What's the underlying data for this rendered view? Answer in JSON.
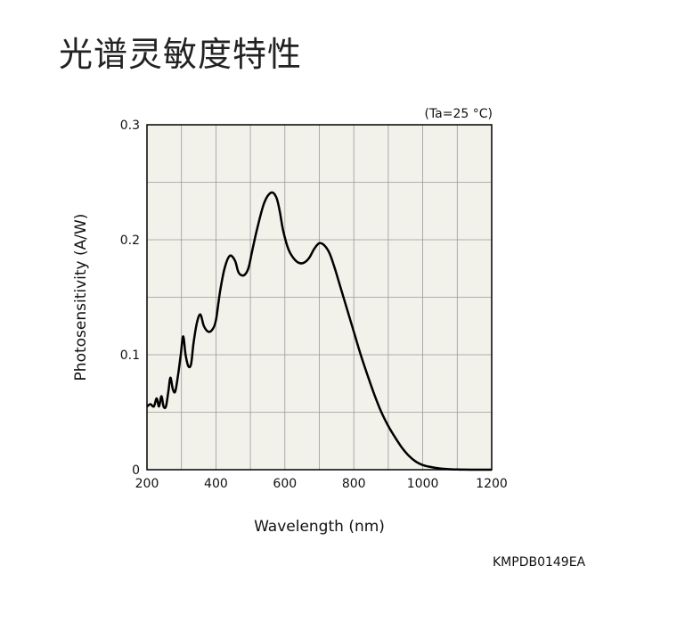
{
  "title": "光谱灵敏度特性",
  "condition_note": "(Ta=25 °C)",
  "doc_code": "KMPDB0149EA",
  "colors": {
    "plot_background": "#f2f1ea",
    "grid": "#9a9a9a",
    "curve": "#000000"
  },
  "chart_data": {
    "type": "line",
    "title": "",
    "xlabel": "Wavelength (nm)",
    "ylabel": "Photosensitivity (A/W)",
    "xlim": [
      200,
      1200
    ],
    "ylim": [
      0,
      0.3
    ],
    "x_ticks": [
      200,
      400,
      600,
      800,
      1000,
      1200
    ],
    "x_tick_labels": [
      "200",
      "400",
      "600",
      "800",
      "1000",
      "1200"
    ],
    "y_ticks": [
      0,
      0.1,
      0.2,
      0.3
    ],
    "y_tick_labels": [
      "0",
      "0.1",
      "0.2",
      "0.3"
    ],
    "grid": true,
    "series": [
      {
        "x": [
          200,
          210,
          220,
          228,
          235,
          242,
          248,
          255,
          262,
          268,
          275,
          282,
          290,
          298,
          305,
          312,
          320,
          328,
          335,
          345,
          355,
          365,
          378,
          390,
          400,
          412,
          425,
          440,
          455,
          465,
          475,
          485,
          495,
          505,
          520,
          540,
          560,
          575,
          585,
          595,
          610,
          625,
          640,
          655,
          670,
          685,
          700,
          715,
          730,
          745,
          760,
          780,
          800,
          820,
          840,
          860,
          880,
          900,
          920,
          940,
          960,
          980,
          1000,
          1020,
          1040,
          1060,
          1080,
          1100,
          1120,
          1150,
          1180,
          1200
        ],
        "y": [
          0.055,
          0.057,
          0.055,
          0.062,
          0.055,
          0.064,
          0.055,
          0.055,
          0.068,
          0.08,
          0.07,
          0.068,
          0.082,
          0.1,
          0.116,
          0.1,
          0.09,
          0.092,
          0.11,
          0.128,
          0.135,
          0.125,
          0.12,
          0.122,
          0.13,
          0.155,
          0.175,
          0.186,
          0.182,
          0.172,
          0.169,
          0.17,
          0.176,
          0.19,
          0.21,
          0.232,
          0.241,
          0.237,
          0.225,
          0.208,
          0.192,
          0.184,
          0.18,
          0.18,
          0.184,
          0.192,
          0.197,
          0.195,
          0.188,
          0.175,
          0.16,
          0.14,
          0.12,
          0.1,
          0.082,
          0.065,
          0.05,
          0.038,
          0.028,
          0.019,
          0.012,
          0.007,
          0.004,
          0.0025,
          0.0015,
          0.0008,
          0.0004,
          0.0002,
          0.0001,
          0,
          0,
          0
        ]
      }
    ]
  }
}
